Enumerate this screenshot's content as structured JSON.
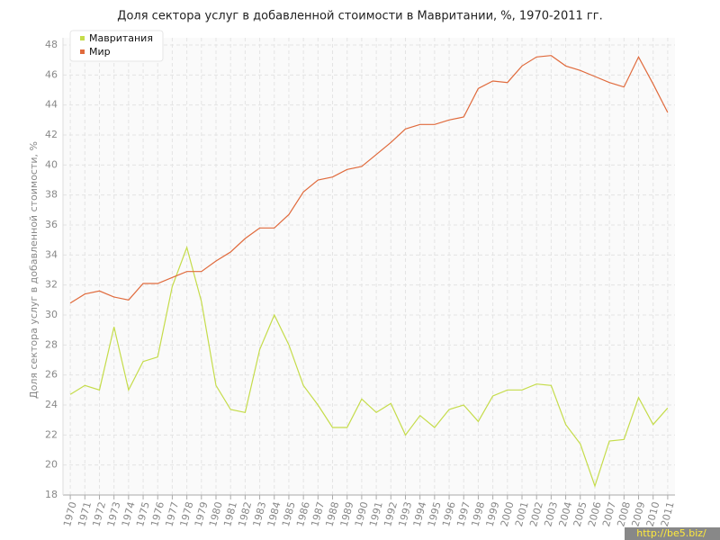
{
  "chart_data": {
    "type": "line",
    "title": "Доля сектора услуг в добавленной стоимости в Мавритании, %, 1970-2011 гг.",
    "y_label": "Доля сектора услуг в добавленной стоимости, %",
    "watermark": "http://be5.biz/",
    "categories": [
      "1970",
      "1971",
      "1972",
      "1973",
      "1974",
      "1975",
      "1976",
      "1977",
      "1978",
      "1979",
      "1980",
      "1981",
      "1982",
      "1983",
      "1984",
      "1985",
      "1986",
      "1987",
      "1988",
      "1989",
      "1990",
      "1991",
      "1992",
      "1993",
      "1994",
      "1995",
      "1996",
      "1997",
      "1998",
      "1999",
      "2000",
      "2001",
      "2002",
      "2003",
      "2004",
      "2005",
      "2006",
      "2007",
      "2008",
      "2009",
      "2010",
      "2011"
    ],
    "series": [
      {
        "name": "Мавритания",
        "color": "#c5dc4a",
        "values": [
          24.7,
          25.3,
          25.0,
          29.2,
          25.0,
          26.9,
          27.2,
          31.9,
          34.5,
          30.9,
          25.3,
          23.7,
          23.5,
          27.7,
          30.0,
          28.0,
          25.3,
          24.0,
          22.5,
          22.5,
          24.4,
          23.5,
          24.1,
          22.0,
          23.3,
          22.5,
          23.7,
          24.0,
          22.9,
          24.6,
          25.0,
          25.0,
          25.4,
          25.3,
          22.7,
          21.4,
          18.6,
          21.6,
          21.7,
          24.5,
          22.7,
          23.8
        ]
      },
      {
        "name": "Мир",
        "color": "#e06a3c",
        "values": [
          30.8,
          31.4,
          31.6,
          31.2,
          31.0,
          32.1,
          32.1,
          32.5,
          32.9,
          32.9,
          33.6,
          34.2,
          35.1,
          35.8,
          35.8,
          36.7,
          38.2,
          39.0,
          39.2,
          39.7,
          39.9,
          40.7,
          41.5,
          42.4,
          42.7,
          42.7,
          43.0,
          43.2,
          45.1,
          45.6,
          45.5,
          46.6,
          47.2,
          47.3,
          46.6,
          46.3,
          45.9,
          45.5,
          45.2,
          47.2,
          45.4,
          43.5
        ]
      }
    ],
    "ylim": [
      18,
      48
    ],
    "yticks": [
      18,
      20,
      22,
      24,
      26,
      28,
      30,
      32,
      34,
      36,
      38,
      40,
      42,
      44,
      46,
      48
    ],
    "grid": true,
    "legend": "top-left"
  }
}
